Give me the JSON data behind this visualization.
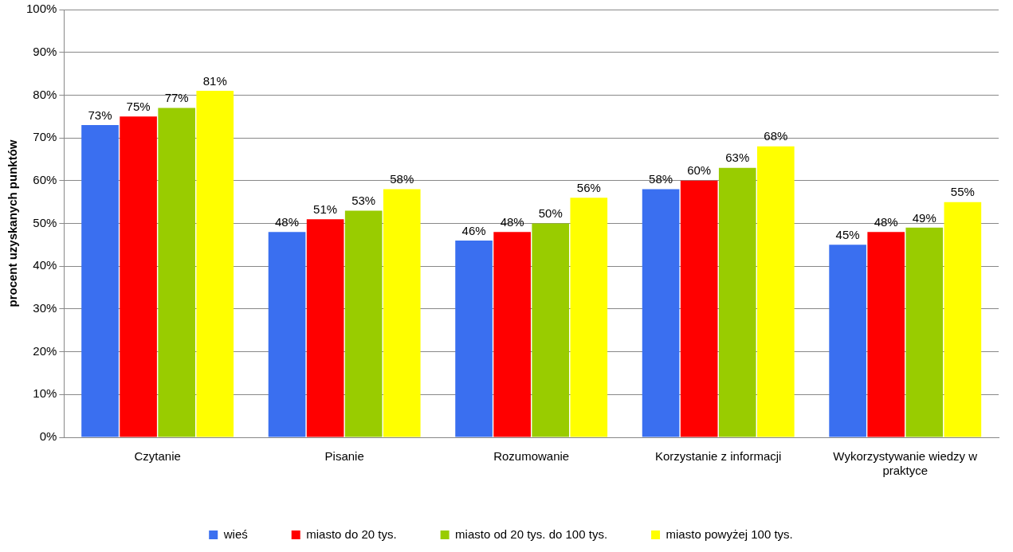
{
  "chart_data": {
    "type": "bar",
    "ylabel": "procent uzyskanych punktów",
    "categories": [
      "Czytanie",
      "Pisanie",
      "Rozumowanie",
      "Korzystanie z informacji",
      "Wykorzystywanie wiedzy w praktyce"
    ],
    "series": [
      {
        "name": "wieś",
        "color": "#3a6ff0",
        "values": [
          73,
          48,
          46,
          58,
          45
        ],
        "value_labels": [
          "73%",
          "48%",
          "46%",
          "58%",
          "45%"
        ]
      },
      {
        "name": "miasto do 20 tys.",
        "color": "#ff0000",
        "values": [
          75,
          51,
          48,
          60,
          48
        ],
        "value_labels": [
          "75%",
          "51%",
          "48%",
          "60%",
          "48%"
        ]
      },
      {
        "name": "miasto od 20 tys. do 100 tys.",
        "color": "#99cc00",
        "values": [
          77,
          53,
          50,
          63,
          49
        ],
        "value_labels": [
          "77%",
          "53%",
          "50%",
          "63%",
          "49%"
        ]
      },
      {
        "name": "miasto powyżej 100 tys.",
        "color": "#ffff00",
        "values": [
          81,
          58,
          56,
          68,
          55
        ],
        "value_labels": [
          "81%",
          "58%",
          "56%",
          "68%",
          "55%"
        ]
      }
    ],
    "ylim": [
      0,
      100
    ],
    "yticks": [
      {
        "value": 0,
        "label": "0%"
      },
      {
        "value": 10,
        "label": "10%"
      },
      {
        "value": 20,
        "label": "20%"
      },
      {
        "value": 30,
        "label": "30%"
      },
      {
        "value": 40,
        "label": "40%"
      },
      {
        "value": 50,
        "label": "50%"
      },
      {
        "value": 60,
        "label": "60%"
      },
      {
        "value": 70,
        "label": "70%"
      },
      {
        "value": 80,
        "label": "80%"
      },
      {
        "value": 90,
        "label": "90%"
      },
      {
        "value": 100,
        "label": "100%"
      }
    ],
    "grid": "y",
    "legend": "bottom"
  }
}
